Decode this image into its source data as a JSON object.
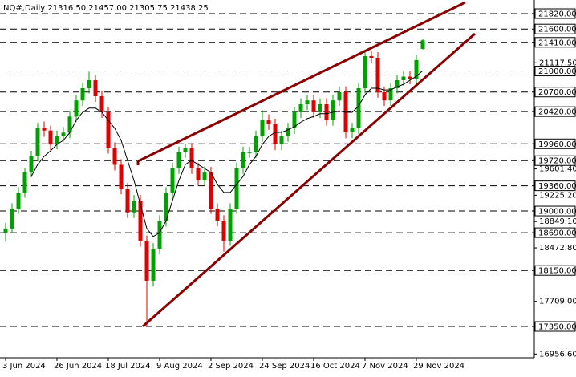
{
  "chart_data": {
    "type": "candlestick",
    "title": "NQ#,Daily  21316.50 21457.00 21305.75 21438.25",
    "up_color": "#00a000",
    "down_color": "#e00000",
    "ma_color": "#000000",
    "level_color": "#000000",
    "ylim": [
      16903,
      22015
    ],
    "yticks": [
      {
        "value": 16956.6,
        "label": "16956.60"
      },
      {
        "value": 17709,
        "label": "17709.00"
      },
      {
        "value": 18472.8,
        "label": "18472.80"
      },
      {
        "value": 18849.1,
        "label": "18849.10"
      },
      {
        "value": 19225.2,
        "label": "19225.20"
      },
      {
        "value": 19601.4,
        "label": "19601.40"
      },
      {
        "value": 21117.5,
        "label": "21117.50"
      }
    ],
    "levels": [
      {
        "value": 21820,
        "label": "21820.00"
      },
      {
        "value": 21600,
        "label": "21600.00"
      },
      {
        "value": 21410,
        "label": "21410.00"
      },
      {
        "value": 21000,
        "label": "21000.00"
      },
      {
        "value": 20700,
        "label": "20700.00"
      },
      {
        "value": 20420,
        "label": "20420.00"
      },
      {
        "value": 19960,
        "label": "19960.00"
      },
      {
        "value": 19720,
        "label": "19720.00"
      },
      {
        "value": 19360,
        "label": "19360.00"
      },
      {
        "value": 19000,
        "label": "19000.00"
      },
      {
        "value": 18690,
        "label": "18690.00"
      },
      {
        "value": 18150,
        "label": "18150.00"
      },
      {
        "value": 17350,
        "label": "17350.00"
      }
    ],
    "categories": [
      "3 Jun 2024",
      null,
      null,
      null,
      null,
      null,
      null,
      null,
      "26 Jun 2024",
      null,
      null,
      null,
      null,
      null,
      null,
      null,
      "18 Jul 2024",
      null,
      null,
      null,
      null,
      null,
      null,
      null,
      "9 Aug 2024",
      null,
      null,
      null,
      null,
      null,
      null,
      null,
      "2 Sep 2024",
      null,
      null,
      null,
      null,
      null,
      null,
      null,
      "24 Sep 2024",
      null,
      null,
      null,
      null,
      null,
      null,
      null,
      "16 Oct 2024",
      null,
      null,
      null,
      null,
      null,
      null,
      null,
      "7 Nov 2024",
      null,
      null,
      null,
      null,
      null,
      null,
      null,
      "29 Nov 2024",
      null
    ],
    "open": [
      18690,
      18750,
      19035,
      19265,
      19550,
      19780,
      20181,
      20150,
      19950,
      20067,
      20120,
      20350,
      20580,
      20754,
      20869,
      20640,
      20411,
      19900,
      19660,
      19320,
      18980,
      19150,
      18577,
      18004,
      18462,
      18860,
      19265,
      19608,
      19838,
      19895,
      19608,
      19437,
      19550,
      19035,
      18860,
      18577,
      19035,
      19608,
      19838,
      19838,
      20067,
      20296,
      20240,
      19952,
      20067,
      20181,
      20411,
      20525,
      20580,
      20411,
      20525,
      20296,
      20580,
      20697,
      20124,
      20181,
      20754,
      21213,
      21190,
      20697,
      20580,
      20754,
      20869,
      20920,
      20890,
      21316.5
    ],
    "high": [
      18830,
      19110,
      19340,
      19620,
      19860,
      20260,
      20280,
      20220,
      20150,
      20200,
      20430,
      20660,
      20830,
      20990,
      20940,
      20720,
      20490,
      19980,
      19740,
      19400,
      19230,
      19230,
      18650,
      18540,
      18940,
      19340,
      19690,
      19920,
      19960,
      19970,
      19690,
      19640,
      19630,
      19110,
      18940,
      19110,
      19690,
      19920,
      19920,
      20150,
      20440,
      20380,
      20320,
      20150,
      20260,
      20490,
      20610,
      20660,
      20660,
      20610,
      20610,
      20660,
      20780,
      20780,
      20260,
      20830,
      21300,
      21280,
      21270,
      20780,
      20830,
      20940,
      21000,
      21000,
      21230,
      21457
    ],
    "low": [
      18560,
      18690,
      18960,
      19190,
      19480,
      19710,
      20060,
      19870,
      19880,
      19990,
      20040,
      20270,
      20500,
      20680,
      20560,
      20330,
      19820,
      19580,
      19240,
      18900,
      18900,
      18490,
      17350,
      17920,
      18380,
      18780,
      19190,
      19530,
      19760,
      19530,
      19360,
      19360,
      18960,
      18780,
      18420,
      18500,
      18960,
      19530,
      19760,
      19760,
      19990,
      20160,
      19870,
      19870,
      19990,
      20100,
      20330,
      20440,
      20330,
      20330,
      20220,
      20220,
      20500,
      20040,
      20040,
      20100,
      20680,
      21110,
      20620,
      20500,
      20500,
      20680,
      20790,
      20810,
      20810,
      21305.75
    ],
    "close": [
      18750,
      19035,
      19265,
      19550,
      19780,
      20181,
      20150,
      19950,
      20067,
      20120,
      20350,
      20580,
      20754,
      20869,
      20640,
      20411,
      19900,
      19660,
      19320,
      18980,
      19150,
      18577,
      18004,
      18462,
      18860,
      19265,
      19608,
      19838,
      19895,
      19608,
      19437,
      19550,
      19035,
      18860,
      18577,
      19035,
      19608,
      19838,
      19838,
      20067,
      20296,
      20240,
      19952,
      20067,
      20181,
      20411,
      20525,
      20580,
      20411,
      20525,
      20296,
      20580,
      20697,
      20124,
      20181,
      20754,
      21213,
      21190,
      20697,
      20580,
      20754,
      20869,
      20920,
      20890,
      21156,
      21438.25
    ],
    "ma": [
      null,
      null,
      null,
      null,
      19494,
      19665,
      19780,
      19860,
      19952,
      20010,
      20120,
      20296,
      20411,
      20470,
      20470,
      20411,
      20296,
      20181,
      20010,
      19723,
      19437,
      19093,
      18750,
      18635,
      18692,
      18860,
      19150,
      19437,
      19665,
      19723,
      19665,
      19608,
      19550,
      19379,
      19265,
      19265,
      19379,
      19494,
      19665,
      19780,
      19952,
      20067,
      20124,
      20124,
      20160,
      20205,
      20270,
      20320,
      20350,
      20390,
      20390,
      20411,
      20430,
      20411,
      20411,
      20500,
      20660,
      20754,
      20754,
      20730,
      20730,
      20775,
      20810,
      20869,
      20926,
      21005
    ]
  }
}
